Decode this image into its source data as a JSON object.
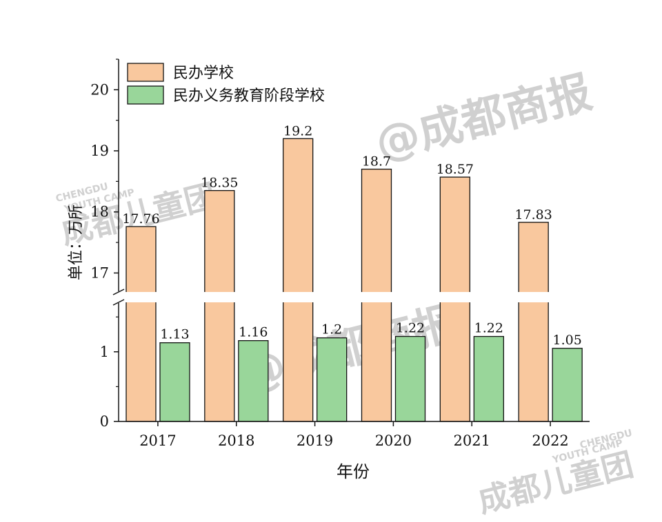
{
  "chart_data": {
    "type": "bar",
    "categories": [
      "2017",
      "2018",
      "2019",
      "2020",
      "2021",
      "2022"
    ],
    "series": [
      {
        "name": "民办学校",
        "values": [
          17.76,
          18.35,
          19.2,
          18.7,
          18.57,
          17.83
        ],
        "labels": [
          "17.76",
          "18.35",
          "19.2",
          "18.7",
          "18.57",
          "17.83"
        ],
        "color": "#f9c89e"
      },
      {
        "name": "民办义务教育阶段学校",
        "values": [
          1.13,
          1.16,
          1.2,
          1.22,
          1.22,
          1.05
        ],
        "labels": [
          "1.13",
          "1.16",
          "1.2",
          "1.22",
          "1.22",
          "1.05"
        ],
        "color": "#99d69a"
      }
    ],
    "xlabel": "年份",
    "ylabel": "单位：万所",
    "axis_break": true,
    "ylim_lower": [
      0,
      1.7
    ],
    "ylim_upper": [
      16.7,
      20.5
    ],
    "yticks_lower": [
      "0",
      "1"
    ],
    "yticks_upper": [
      "17",
      "18",
      "19",
      "20"
    ],
    "legend_position": "top-left",
    "grid": false
  },
  "watermarks": [
    "@成都商报",
    "成都儿童团",
    "CHENGDU",
    "YOUTH CAMP"
  ]
}
